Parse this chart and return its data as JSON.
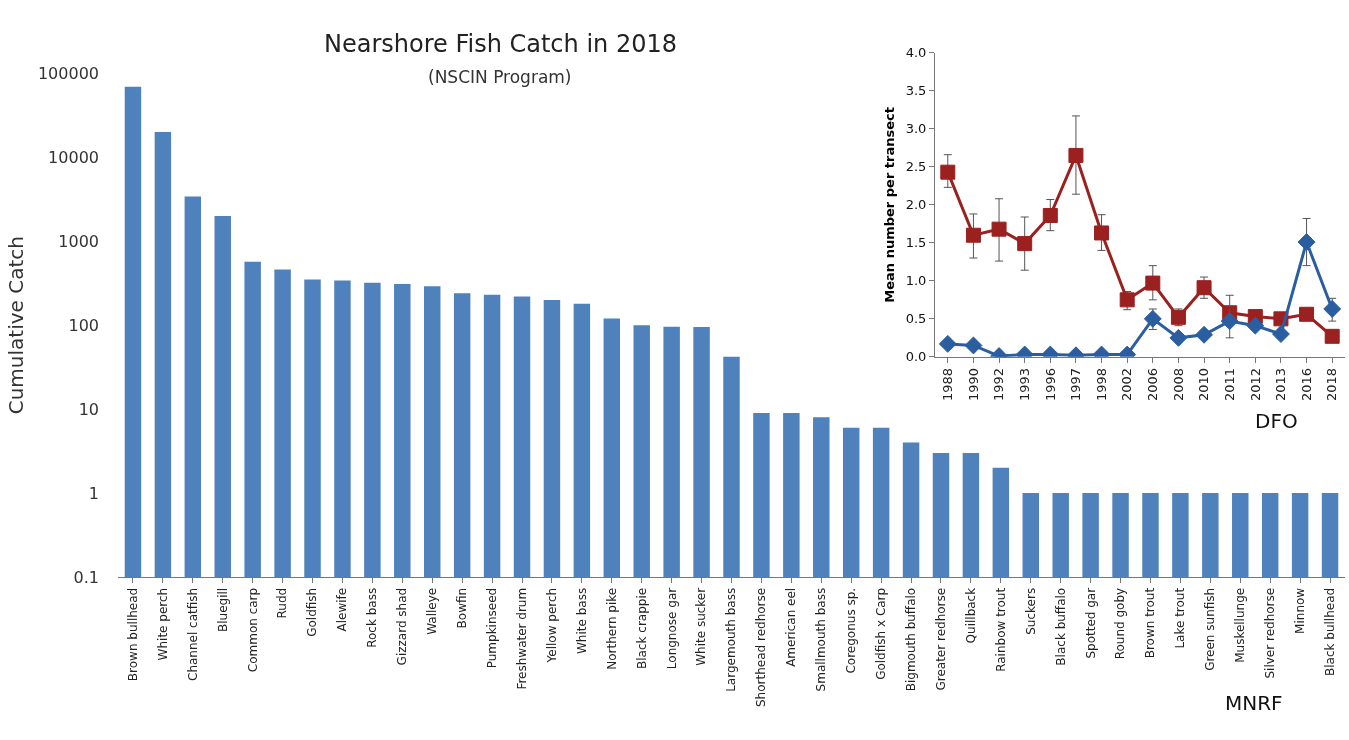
{
  "chart_data": [
    {
      "type": "bar",
      "title": "Nearshore Fish Catch in 2018",
      "subtitle": "(NSCIN Program)",
      "ylabel": "Cumulative Catch",
      "log": true,
      "color": "#4f81bd",
      "categories": [
        "Brown bullhead",
        "White perch",
        "Channel catfish",
        "Bluegill",
        "Common carp",
        "Rudd",
        "Goldfish",
        "Alewife",
        "Rock bass",
        "Gizzard shad",
        "Walleye",
        "Bowfin",
        "Pumpkinseed",
        "Freshwater drum",
        "Yellow perch",
        "White bass",
        "Northern pike",
        "Black crappie",
        "Longnose gar",
        "White sucker",
        "Largemouth bass",
        "Shorthead redhorse",
        "American eel",
        "Smallmouth bass",
        "Coregonus sp.",
        "Goldfish x Carp",
        "Bigmouth buffalo",
        "Greater redhorse",
        "Quillback",
        "Rainbow trout",
        "Suckers",
        "Black buffalo",
        "Spotted gar",
        "Round goby",
        "Brown trout",
        "Lake trout",
        "Green sunfish",
        "Muskellunge",
        "Silver redhorse",
        "Minnow",
        "Black bullhead"
      ],
      "values": [
        69000,
        20000,
        3400,
        2000,
        570,
        460,
        350,
        340,
        320,
        310,
        290,
        240,
        230,
        220,
        200,
        180,
        120,
        100,
        96,
        95,
        42,
        9,
        9,
        8,
        6,
        6,
        4,
        3,
        3,
        2,
        1,
        1,
        1,
        1,
        1,
        1,
        1,
        1,
        1,
        1,
        1
      ],
      "ylim": [
        0.1,
        100000
      ],
      "yticks": [
        0.1,
        1,
        10,
        100,
        1000,
        10000,
        100000
      ],
      "annotations": [
        "MNRF"
      ]
    },
    {
      "type": "line",
      "ylabel": "Mean number per transect",
      "categories": [
        "1988",
        "1990",
        "1992",
        "1993",
        "1996",
        "1997",
        "1998",
        "2002",
        "2006",
        "2008",
        "2010",
        "2011",
        "2012",
        "2013",
        "2016",
        "2018"
      ],
      "ylim": [
        0,
        4
      ],
      "yticks": [
        {
          "value": 0,
          "label": "0.0"
        },
        {
          "value": 0.5,
          "label": "0.5"
        },
        {
          "value": 1,
          "label": "1.0"
        },
        {
          "value": 1.5,
          "label": "1.5"
        },
        {
          "value": 2,
          "label": "2.0"
        },
        {
          "value": 2.5,
          "label": "2.5"
        },
        {
          "value": 3,
          "label": "3.0"
        },
        {
          "value": 3.5,
          "label": "3.5"
        },
        {
          "value": 4,
          "label": "4.0"
        }
      ],
      "series": [
        {
          "color": "#9b2020",
          "marker": "square",
          "values": [
            2.43,
            1.6,
            1.68,
            1.49,
            1.86,
            2.65,
            1.63,
            0.75,
            0.97,
            0.52,
            0.91,
            0.58,
            0.53,
            0.5,
            0.56,
            0.27
          ],
          "errors": [
            [
              2.23,
              2.66
            ],
            [
              1.3,
              1.88
            ],
            [
              1.26,
              2.08
            ],
            [
              1.14,
              1.84
            ],
            [
              1.66,
              2.07
            ],
            [
              2.14,
              3.17
            ],
            [
              1.4,
              1.87
            ],
            [
              0.62,
              0.86
            ],
            [
              0.75,
              1.2
            ],
            [
              0.41,
              0.63
            ],
            [
              0.77,
              1.05
            ],
            null,
            null,
            null,
            null,
            null
          ]
        },
        {
          "color": "#2a5ea0",
          "marker": "diamond",
          "values": [
            0.17,
            0.15,
            0.01,
            0.03,
            0.03,
            0.02,
            0.03,
            0.03,
            0.5,
            0.25,
            0.29,
            0.47,
            0.41,
            0.3,
            1.51,
            0.63
          ],
          "errors": [
            null,
            null,
            null,
            null,
            null,
            null,
            null,
            null,
            [
              0.36,
              0.63
            ],
            null,
            null,
            [
              0.25,
              0.81
            ],
            null,
            null,
            [
              1.2,
              1.82
            ],
            [
              0.47,
              0.77
            ]
          ]
        }
      ],
      "annotations": [
        "DFO"
      ]
    }
  ]
}
